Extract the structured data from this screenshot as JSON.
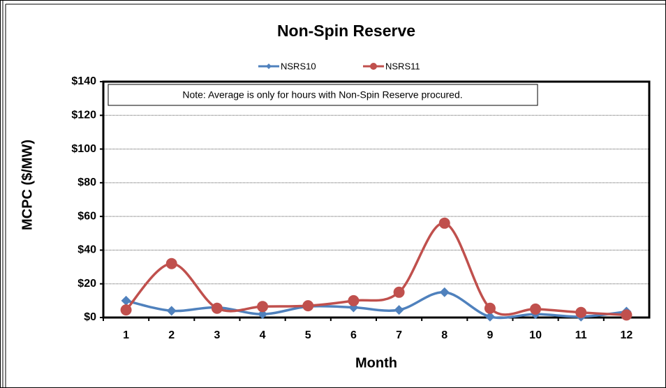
{
  "chart_data": {
    "type": "line",
    "title": "Non-Spin Reserve",
    "x_label": "Month",
    "y_label": "MCPC ($/MW)",
    "annotation": "Note: Average is only for hours with Non-Spin Reserve procured.",
    "categories": [
      "1",
      "2",
      "3",
      "4",
      "5",
      "6",
      "7",
      "8",
      "9",
      "10",
      "11",
      "12"
    ],
    "series": [
      {
        "name": "NSRS10",
        "color": "#4f81bd",
        "marker": "diamond",
        "values": [
          10,
          4,
          6,
          2,
          6.5,
          6,
          4.5,
          15,
          0.5,
          2,
          0.5,
          3.5
        ]
      },
      {
        "name": "NSRS11",
        "color": "#c0504d",
        "marker": "circle",
        "values": [
          4.5,
          32,
          5.5,
          6.5,
          7,
          10,
          15,
          56,
          5.5,
          5,
          3,
          1.5
        ]
      }
    ],
    "ylim": [
      0,
      140
    ],
    "yticks": [
      {
        "value": 0,
        "label": "$0"
      },
      {
        "value": 20,
        "label": "$20"
      },
      {
        "value": 40,
        "label": "$40"
      },
      {
        "value": 60,
        "label": "$60"
      },
      {
        "value": 80,
        "label": "$80"
      },
      {
        "value": 100,
        "label": "$100"
      },
      {
        "value": 120,
        "label": "$120"
      },
      {
        "value": 140,
        "label": "$140"
      }
    ],
    "grid": true,
    "smooth": true,
    "legend": "top"
  }
}
